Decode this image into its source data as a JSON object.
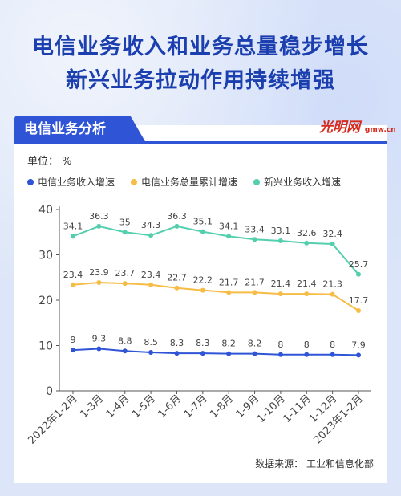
{
  "headline": {
    "line1": "电信业务收入和业务总量稳步增长",
    "line2": "新兴业务拉动作用持续增强"
  },
  "section": {
    "title": "电信业务分析"
  },
  "logo": {
    "text": "光明网",
    "sub": "gmw.cn"
  },
  "unit_label": "单位： %",
  "source": "数据来源： 工业和信息化部",
  "colors": {
    "blue": "#2f55d6",
    "orange": "#f6bc45",
    "teal": "#54cfae"
  },
  "chart_data": {
    "type": "line",
    "categories": [
      "2022年1-2月",
      "1-3月",
      "1-4月",
      "1-5月",
      "1-6月",
      "1-7月",
      "1-8月",
      "1-9月",
      "1-10月",
      "1-11月",
      "1-12月",
      "2023年1-2月"
    ],
    "ylim": [
      0,
      40
    ],
    "yticks": [
      0,
      10,
      20,
      30,
      40
    ],
    "series": [
      {
        "name": "电信业务收入增速",
        "color": "#2f55d6",
        "values": [
          9,
          9.3,
          8.8,
          8.5,
          8.3,
          8.3,
          8.2,
          8.2,
          8,
          8,
          8,
          7.9
        ]
      },
      {
        "name": "电信业务总量累计增速",
        "color": "#f6bc45",
        "values": [
          23.4,
          23.9,
          23.7,
          23.4,
          22.7,
          22.2,
          21.7,
          21.7,
          21.4,
          21.4,
          21.3,
          17.7
        ]
      },
      {
        "name": "新兴业务收入增速",
        "color": "#54cfae",
        "values": [
          34.1,
          36.3,
          35,
          34.3,
          36.3,
          35.1,
          34.1,
          33.4,
          33.1,
          32.6,
          32.4,
          25.7
        ]
      }
    ]
  }
}
